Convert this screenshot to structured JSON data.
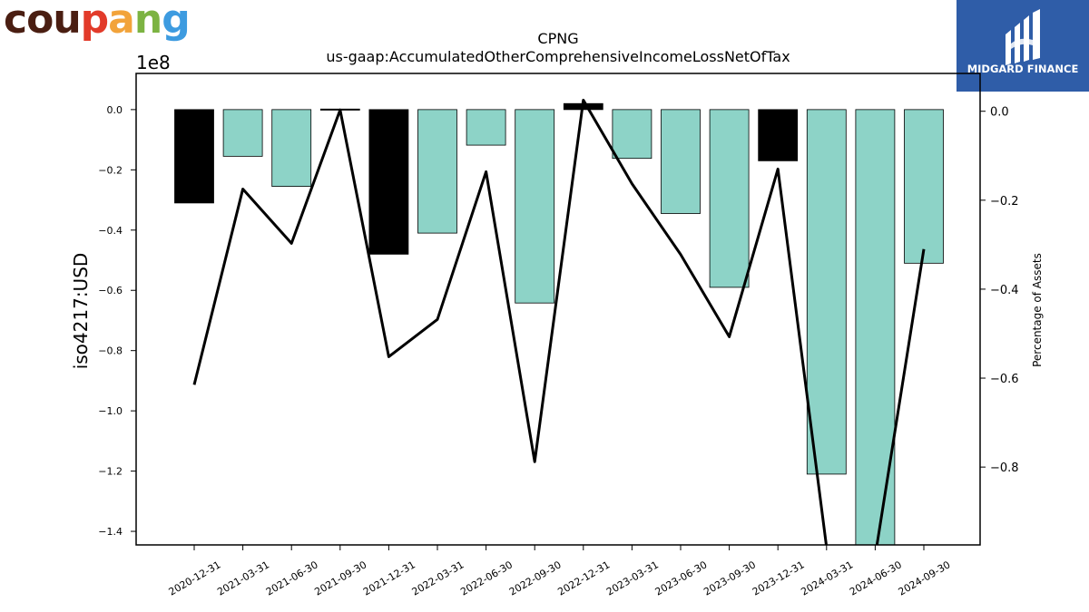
{
  "brand_left": {
    "letters": [
      "c",
      "o",
      "u",
      "p",
      "a",
      "n",
      "g"
    ],
    "letter_colors": [
      "#4a1e12",
      "#4a1e12",
      "#4a1e12",
      "#e23b2a",
      "#f2a33a",
      "#7cb342",
      "#3d9be0"
    ]
  },
  "brand_right": {
    "name": "MIDGARD FINANCE",
    "bg_color": "#2f5da8"
  },
  "chart_data": {
    "type": "bar",
    "title": "CPNG",
    "subtitle": "us-gaap:AccumulatedOtherComprehensiveIncomeLossNetOfTax",
    "ylabel": "iso4217:USD",
    "ylabel_right": "Percentage of Assets",
    "y_offset_label": "1e8",
    "categories": [
      "2020-12-31",
      "2021-03-31",
      "2021-06-30",
      "2021-09-30",
      "2021-12-31",
      "2022-03-31",
      "2022-06-30",
      "2022-09-30",
      "2022-12-31",
      "2023-03-31",
      "2023-06-30",
      "2023-09-30",
      "2023-12-31",
      "2024-03-31",
      "2024-06-30",
      "2024-09-30"
    ],
    "values": [
      -0.31,
      -0.155,
      -0.255,
      -0.003,
      -0.48,
      -0.41,
      -0.118,
      -0.642,
      0.02,
      -0.162,
      -0.345,
      -0.59,
      -0.17,
      -1.21,
      -1.52,
      -0.51
    ],
    "bar_colors": [
      "#000000",
      "#8dd3c7",
      "#8dd3c7",
      "#000000",
      "#000000",
      "#8dd3c7",
      "#8dd3c7",
      "#8dd3c7",
      "#000000",
      "#8dd3c7",
      "#8dd3c7",
      "#8dd3c7",
      "#000000",
      "#8dd3c7",
      "#8dd3c7",
      "#8dd3c7"
    ],
    "ylim": [
      -1.445,
      0.12
    ],
    "yticks": [
      0.0,
      -0.2,
      -0.4,
      -0.6,
      -0.8,
      -1.0,
      -1.2,
      -1.4
    ],
    "ytick_labels": [
      "0.0",
      "−0.2",
      "−0.4",
      "−0.6",
      "−0.8",
      "−1.0",
      "−1.2",
      "−1.4"
    ],
    "series_right": {
      "values": [
        -0.615,
        -0.175,
        -0.297,
        0.003,
        -0.552,
        -0.468,
        -0.136,
        -0.788,
        0.025,
        -0.163,
        -0.322,
        -0.507,
        -0.13,
        -0.98,
        -1.0,
        -0.31
      ],
      "ylim": [
        -0.975,
        0.085
      ],
      "yticks": [
        0.0,
        -0.2,
        -0.4,
        -0.6,
        -0.8
      ],
      "ytick_labels": [
        "0.0",
        "−0.2",
        "−0.4",
        "−0.6",
        "−0.8"
      ]
    },
    "grid": false,
    "legend": "none"
  }
}
